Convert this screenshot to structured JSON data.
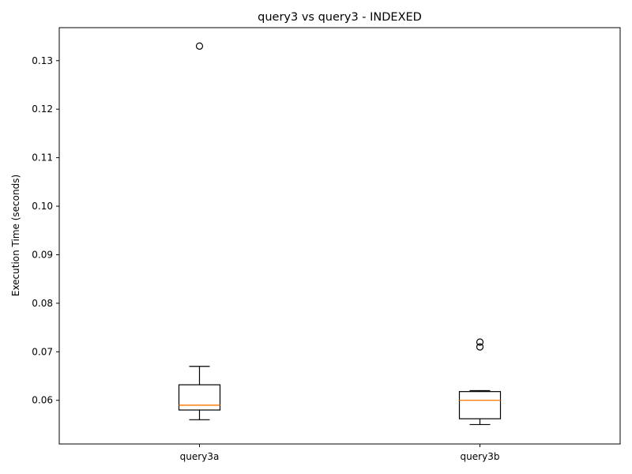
{
  "chart_data": {
    "type": "box",
    "title": "query3 vs query3 - INDEXED",
    "xlabel": "",
    "ylabel": "Execution Time (seconds)",
    "ylim": [
      0.051,
      0.1368
    ],
    "yticks": [
      0.06,
      0.07,
      0.08,
      0.09,
      0.1,
      0.11,
      0.12,
      0.13
    ],
    "ytick_labels": [
      "0.06",
      "0.07",
      "0.08",
      "0.09",
      "0.10",
      "0.11",
      "0.12",
      "0.13"
    ],
    "grid": false,
    "categories": [
      "query3a",
      "query3b"
    ],
    "boxes": [
      {
        "label": "query3a",
        "whislo": 0.056,
        "q1": 0.058,
        "median": 0.059,
        "q3": 0.0632,
        "whishi": 0.067,
        "fliers": [
          0.133
        ]
      },
      {
        "label": "query3b",
        "whislo": 0.055,
        "q1": 0.0562,
        "median": 0.06,
        "q3": 0.0618,
        "whishi": 0.062,
        "fliers": [
          0.071,
          0.072
        ]
      }
    ],
    "colors": {
      "box": "#000000",
      "median": "#ff7f0e",
      "flier": "#000000"
    }
  }
}
